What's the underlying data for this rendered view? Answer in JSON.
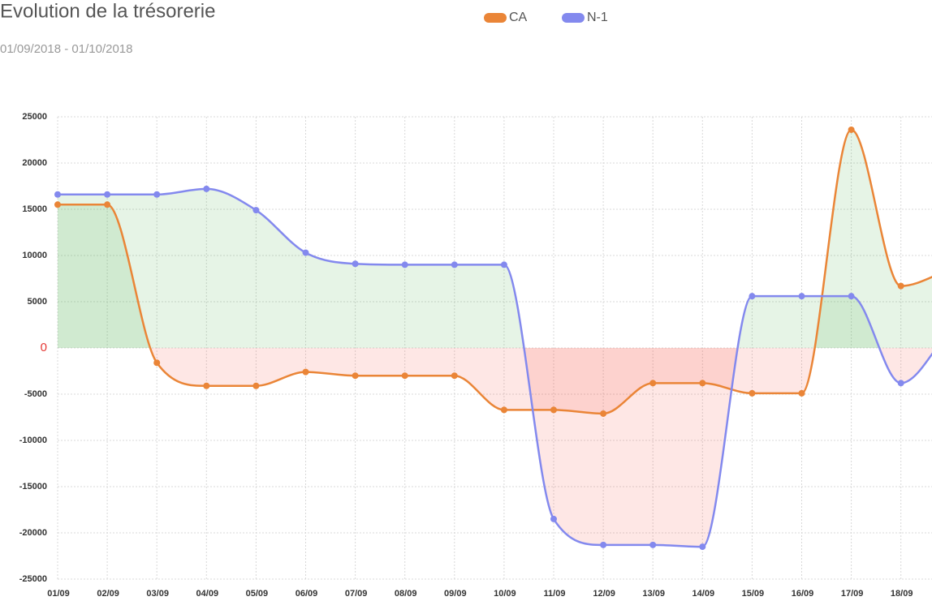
{
  "chart_data": {
    "type": "line",
    "title": "Evolution de la trésorerie",
    "subtitle": "01/09/2018 - 01/10/2018",
    "categories": [
      "01/09",
      "02/09",
      "03/09",
      "04/09",
      "05/09",
      "06/09",
      "07/09",
      "08/09",
      "09/09",
      "10/09",
      "11/09",
      "12/09",
      "13/09",
      "14/09",
      "15/09",
      "16/09",
      "17/09",
      "18/09",
      null
    ],
    "series": [
      {
        "name": "CA",
        "color": "#ea8537",
        "values": [
          15500,
          15500,
          -1600,
          -4100,
          -4100,
          -2600,
          -3000,
          -3000,
          -3000,
          -6700,
          -6700,
          -7100,
          -3800,
          -3800,
          -4900,
          -4900,
          23600,
          6700,
          8500
        ]
      },
      {
        "name": "N-1",
        "color": "#8389ee",
        "values": [
          16600,
          16600,
          16600,
          17200,
          14900,
          10300,
          9100,
          9000,
          9000,
          9000,
          -18500,
          -21300,
          -21300,
          -21500,
          5600,
          5600,
          5600,
          -3800,
          2000
        ]
      }
    ],
    "ylim": [
      -25000,
      25000
    ],
    "yticks": [
      -25000,
      -20000,
      -15000,
      -10000,
      -5000,
      0,
      5000,
      10000,
      15000,
      20000,
      25000
    ],
    "zero_tick_color": "#e53935",
    "positive_fill": "rgba(76,175,80,0.14)",
    "negative_fill": "rgba(244,67,54,0.13)",
    "grid": true
  }
}
